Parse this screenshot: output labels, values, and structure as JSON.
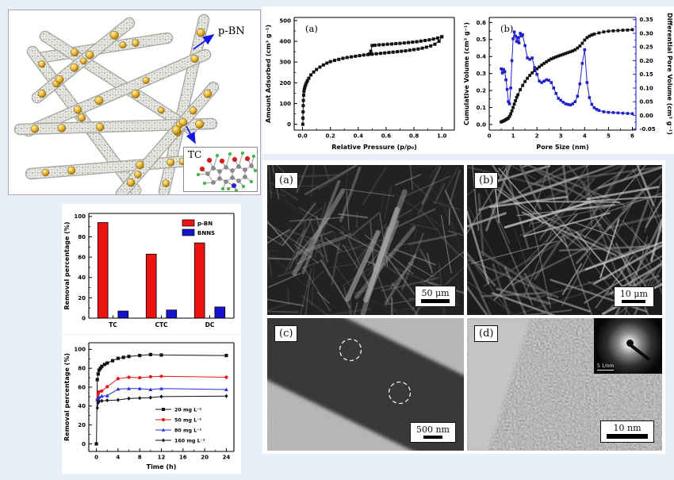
{
  "figure": {
    "bg": "#e9eff8",
    "card_bg": "#ffffff"
  },
  "schematic": {
    "pbn_label": "p-BN",
    "tc_label": "TC",
    "arrow_color": "#1515e8",
    "sphere_color": "#d9a520",
    "rod_color": "#d9d9d5"
  },
  "chart_data": [
    {
      "id": "adsorption-isotherm",
      "type": "line",
      "panel_label": "(a)",
      "xlabel": "Relative Pressure (p/p₀)",
      "ylabel": "Amount Adsorbed (cm³ g⁻¹)",
      "xlim": [
        -0.06,
        1.09
      ],
      "ylim": [
        -28,
        515
      ],
      "xticks": [
        0,
        0.2,
        0.4,
        0.6,
        0.8,
        1
      ],
      "xtick_labels": [
        "0.0",
        "0.2",
        "0.4",
        "0.6",
        "0.8",
        "1.0"
      ],
      "yticks": [
        0,
        100,
        200,
        300,
        400,
        500
      ],
      "ytick_labels": [
        "0",
        "100",
        "200",
        "300",
        "400",
        "500"
      ],
      "xminor": 0.1,
      "yminor": 50,
      "grid": false,
      "legend": false,
      "series": [
        {
          "name": "adsorption branch",
          "color": "#111111",
          "marker": "square",
          "msize": 2.0,
          "line": true,
          "x": [
            0.002,
            0.003,
            0.004,
            0.005,
            0.006,
            0.008,
            0.01,
            0.013,
            0.017,
            0.022,
            0.028,
            0.035,
            0.045,
            0.06,
            0.08,
            0.1,
            0.125,
            0.15,
            0.175,
            0.2,
            0.23,
            0.26,
            0.29,
            0.32,
            0.35,
            0.38,
            0.41,
            0.44,
            0.47,
            0.5,
            0.53,
            0.56,
            0.59,
            0.62,
            0.65,
            0.68,
            0.71,
            0.74,
            0.77,
            0.8,
            0.83,
            0.86,
            0.89,
            0.92,
            0.95,
            0.98,
            1.0
          ],
          "y": [
            0,
            30,
            60,
            90,
            115,
            140,
            158,
            170,
            180,
            190,
            200,
            210,
            222,
            238,
            252,
            264,
            276,
            286,
            295,
            302,
            308,
            313,
            318,
            322,
            325,
            328,
            331,
            334,
            336,
            338,
            340,
            342,
            344,
            346,
            348,
            350,
            352,
            354,
            357,
            360,
            363,
            367,
            372,
            378,
            386,
            400,
            422
          ]
        },
        {
          "name": "desorption branch",
          "color": "#111111",
          "marker": "square",
          "msize": 2.0,
          "line": true,
          "x": [
            1.0,
            0.97,
            0.94,
            0.91,
            0.88,
            0.85,
            0.82,
            0.79,
            0.76,
            0.73,
            0.7,
            0.67,
            0.64,
            0.61,
            0.58,
            0.55,
            0.52,
            0.5,
            0.49,
            0.48
          ],
          "y": [
            422,
            416,
            411,
            407,
            404,
            401,
            398,
            396,
            394,
            392,
            390,
            389,
            387,
            386,
            384,
            383,
            381,
            380,
            352,
            339
          ]
        }
      ]
    },
    {
      "id": "pore-size-distribution",
      "type": "line",
      "panel_label": "(b)",
      "xlabel": "Pore Size (nm)",
      "ylabel": "Cumulative Volume (cm³ g⁻¹)",
      "y2label": "Differential Pore Volume (cm³ g⁻¹)",
      "y2color": "#2121c8",
      "xlim": [
        0,
        6.15
      ],
      "ylim": [
        -0.033,
        0.63
      ],
      "y2lim": [
        -0.054,
        0.358
      ],
      "xticks": [
        0,
        1,
        2,
        3,
        4,
        5,
        6
      ],
      "xtick_labels": [
        "0",
        "1",
        "2",
        "3",
        "4",
        "5",
        "6"
      ],
      "yticks": [
        0,
        0.1,
        0.2,
        0.3,
        0.4,
        0.5,
        0.6
      ],
      "ytick_labels": [
        "0.0",
        "0.1",
        "0.2",
        "0.3",
        "0.4",
        "0.5",
        "0.6"
      ],
      "y2ticks": [
        -0.05,
        0,
        0.05,
        0.1,
        0.15,
        0.2,
        0.25,
        0.3,
        0.35
      ],
      "y2tick_labels": [
        "-0.05",
        "0.00",
        "0.05",
        "0.10",
        "0.15",
        "0.20",
        "0.25",
        "0.30",
        "0.35"
      ],
      "xminor": 0.5,
      "yminor": 0.05,
      "y2minor": 0.025,
      "grid": false,
      "legend": false,
      "series": [
        {
          "name": "cumulative volume",
          "color": "#111111",
          "marker": "square",
          "msize": 1.9,
          "line": true,
          "x": [
            0.5,
            0.55,
            0.6,
            0.65,
            0.7,
            0.75,
            0.8,
            0.85,
            0.9,
            0.95,
            1.0,
            1.05,
            1.1,
            1.15,
            1.2,
            1.3,
            1.4,
            1.5,
            1.6,
            1.7,
            1.8,
            1.9,
            2.0,
            2.1,
            2.2,
            2.3,
            2.4,
            2.5,
            2.6,
            2.7,
            2.8,
            2.9,
            3.0,
            3.1,
            3.2,
            3.3,
            3.4,
            3.5,
            3.6,
            3.7,
            3.8,
            3.9,
            4.0,
            4.1,
            4.2,
            4.3,
            4.4,
            4.6,
            4.8,
            5.0,
            5.2,
            5.4,
            5.6,
            5.8,
            6.0
          ],
          "y": [
            0.015,
            0.018,
            0.021,
            0.025,
            0.029,
            0.033,
            0.038,
            0.048,
            0.062,
            0.08,
            0.1,
            0.12,
            0.14,
            0.16,
            0.175,
            0.205,
            0.23,
            0.253,
            0.272,
            0.289,
            0.304,
            0.317,
            0.328,
            0.339,
            0.35,
            0.36,
            0.369,
            0.378,
            0.386,
            0.392,
            0.398,
            0.403,
            0.408,
            0.413,
            0.418,
            0.423,
            0.428,
            0.433,
            0.44,
            0.45,
            0.462,
            0.478,
            0.497,
            0.511,
            0.52,
            0.527,
            0.532,
            0.539,
            0.545,
            0.549,
            0.551,
            0.553,
            0.555,
            0.556,
            0.558
          ]
        },
        {
          "name": "differential pore volume",
          "color": "#2121c8",
          "marker": "square",
          "msize": 1.8,
          "line": true,
          "axis": "y2",
          "x": [
            0.5,
            0.55,
            0.6,
            0.65,
            0.7,
            0.75,
            0.8,
            0.85,
            0.9,
            0.95,
            1.0,
            1.05,
            1.1,
            1.15,
            1.2,
            1.25,
            1.3,
            1.35,
            1.4,
            1.5,
            1.6,
            1.7,
            1.8,
            1.9,
            2.0,
            2.1,
            2.2,
            2.3,
            2.4,
            2.5,
            2.6,
            2.7,
            2.8,
            2.9,
            3.0,
            3.1,
            3.2,
            3.3,
            3.4,
            3.5,
            3.6,
            3.7,
            3.8,
            3.9,
            4.0,
            4.1,
            4.2,
            4.3,
            4.4,
            4.5,
            4.6,
            4.8,
            5.0,
            5.2,
            5.4,
            5.6,
            5.8,
            6.0
          ],
          "y": [
            0.17,
            0.155,
            0.168,
            0.16,
            0.13,
            0.095,
            0.05,
            0.042,
            0.1,
            0.2,
            0.28,
            0.305,
            0.29,
            0.27,
            0.285,
            0.265,
            0.3,
            0.29,
            0.295,
            0.255,
            0.21,
            0.205,
            0.21,
            0.175,
            0.15,
            0.125,
            0.12,
            0.125,
            0.13,
            0.128,
            0.12,
            0.1,
            0.08,
            0.062,
            0.055,
            0.048,
            0.042,
            0.04,
            0.038,
            0.042,
            0.05,
            0.07,
            0.115,
            0.19,
            0.24,
            0.12,
            0.065,
            0.04,
            0.028,
            0.022,
            0.018,
            0.013,
            0.011,
            0.01,
            0.009,
            0.008,
            0.007,
            0.006
          ]
        }
      ]
    },
    {
      "id": "antibiotic-removal-bars",
      "type": "bar",
      "categories": [
        "TC",
        "CTC",
        "DC"
      ],
      "ylabel": "Removal percentage (%)",
      "ylim": [
        0,
        103
      ],
      "yticks": [
        0,
        20,
        40,
        60,
        80,
        100
      ],
      "ytick_labels": [
        "0",
        "20",
        "40",
        "60",
        "80",
        "100"
      ],
      "yminor": 10,
      "grid": false,
      "legend": true,
      "legend_position": "top-right",
      "series": [
        {
          "name": "p-BN",
          "color": "#ec1313",
          "values": [
            94,
            63,
            74
          ]
        },
        {
          "name": "BNNS",
          "color": "#1414cf",
          "values": [
            7,
            8,
            11
          ]
        }
      ]
    },
    {
      "id": "removal-kinetics",
      "type": "line",
      "xlabel": "Time (h)",
      "ylabel": "Removal percentage (%)",
      "xlim": [
        -1.4,
        25.4
      ],
      "ylim": [
        -8,
        107
      ],
      "xticks": [
        0,
        4,
        8,
        12,
        16,
        20,
        24
      ],
      "xtick_labels": [
        "0",
        "4",
        "8",
        "12",
        "16",
        "20",
        "24"
      ],
      "yticks": [
        0,
        20,
        40,
        60,
        80,
        100
      ],
      "ytick_labels": [
        "0",
        "20",
        "40",
        "60",
        "80",
        "100"
      ],
      "xminor": 2,
      "yminor": 10,
      "grid": false,
      "legend": true,
      "legend_position": "lower-right",
      "series": [
        {
          "name": "20 mg L⁻¹",
          "color": "#111111",
          "marker": "square",
          "msize": 2.1,
          "line": true,
          "x": [
            0,
            0.17,
            0.33,
            0.5,
            0.75,
            1,
            1.5,
            2,
            3,
            4,
            5,
            6,
            8,
            10,
            12,
            24
          ],
          "y": [
            0,
            68,
            74,
            78,
            80,
            82,
            84,
            85.5,
            88,
            90.5,
            91.5,
            92.5,
            93.5,
            94.5,
            94,
            93.5
          ]
        },
        {
          "name": "50 mg L⁻¹",
          "color": "#e51616",
          "marker": "circle",
          "msize": 2.1,
          "line": true,
          "x": [
            0.17,
            0.33,
            0.5,
            1,
            2,
            4,
            6,
            8,
            10,
            12,
            24
          ],
          "y": [
            47,
            53,
            55,
            56,
            60.5,
            69,
            70.5,
            70,
            71,
            71.5,
            70.5
          ]
        },
        {
          "name": "80 mg L⁻¹",
          "color": "#2433d6",
          "marker": "triangle",
          "msize": 2.2,
          "line": true,
          "x": [
            0.17,
            0.33,
            0.5,
            1,
            2,
            4,
            6,
            8,
            10,
            12,
            24
          ],
          "y": [
            46.5,
            48,
            49.5,
            50.5,
            51,
            58,
            58.5,
            58.5,
            57.5,
            58.5,
            57.5
          ]
        },
        {
          "name": "160 mg L⁻¹",
          "color": "#111111",
          "marker": "diamond",
          "msize": 2.1,
          "line": true,
          "x": [
            0.17,
            0.33,
            0.5,
            1,
            2,
            4,
            6,
            8,
            10,
            12,
            24
          ],
          "y": [
            38,
            43.5,
            45,
            45.5,
            46,
            46.5,
            48,
            48.5,
            49,
            50,
            50.5
          ]
        }
      ]
    }
  ],
  "micrographs": {
    "panels": [
      {
        "label": "(a)",
        "scale_text": "50 μm",
        "kind": "SEM fibrous mat"
      },
      {
        "label": "(b)",
        "scale_text": "10 μm",
        "kind": "SEM fiber bundles"
      },
      {
        "label": "(c)",
        "scale_text": "500 nm",
        "kind": "TEM single fiber"
      },
      {
        "label": "(d)",
        "scale_text": "10 nm",
        "kind": "HRTEM amorphous",
        "inset_scale_text": "5 1/nm"
      }
    ]
  }
}
